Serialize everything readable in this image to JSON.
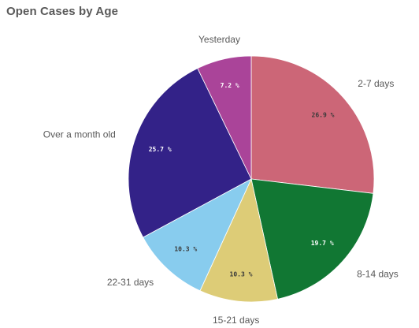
{
  "chart_data": {
    "type": "pie",
    "title": "Open Cases by Age",
    "categories": [
      "2-7 days",
      "8-14 days",
      "15-21 days",
      "22-31 days",
      "Over a month old",
      "Yesterday"
    ],
    "values": [
      26.9,
      19.7,
      10.3,
      10.3,
      25.7,
      7.2
    ],
    "value_labels": [
      "26.9 %",
      "19.7 %",
      "10.3 %",
      "10.3 %",
      "25.7 %",
      "7.2 %"
    ],
    "unit": "%",
    "start": "12 o'clock",
    "direction": "clockwise",
    "colors": [
      "#cc6677",
      "#117733",
      "#ddcc77",
      "#88ccee",
      "#332288",
      "#aa4499"
    ],
    "label_colors": [
      "#3a3a3a",
      "#ffffff",
      "#3a3a3a",
      "#3a3a3a",
      "#ffffff",
      "#ffffff"
    ],
    "legend": "none"
  }
}
